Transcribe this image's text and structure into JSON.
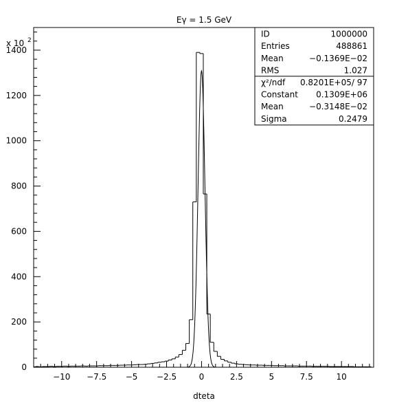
{
  "chart_data": {
    "type": "histogram",
    "title": "Eγ = 1.5 GeV",
    "xlabel": "dteta",
    "ylabel": "",
    "y_scale_label": "x 10",
    "y_scale_exponent": "2",
    "xlim": [
      -12,
      12.3
    ],
    "ylim": [
      0,
      1500
    ],
    "xticks": [
      -10,
      -7.5,
      -5,
      -2.5,
      0,
      2.5,
      5,
      7.5,
      10
    ],
    "xtick_labels": [
      "−10",
      "−7.5",
      "−5",
      "−2.5",
      "0",
      "2.5",
      "5",
      "7.5",
      "10"
    ],
    "yticks": [
      0,
      200,
      400,
      600,
      800,
      1000,
      1200,
      1400
    ],
    "ytick_labels": [
      "0",
      "200",
      "400",
      "600",
      "800",
      "1000",
      "1200",
      "1400"
    ],
    "bin_width": 0.25,
    "histogram": {
      "bin_centers": [
        -12,
        -11.75,
        -11.5,
        -11.25,
        -11,
        -10.75,
        -10.5,
        -10.25,
        -10,
        -9.75,
        -9.5,
        -9.25,
        -9,
        -8.75,
        -8.5,
        -8.25,
        -8,
        -7.75,
        -7.5,
        -7.25,
        -7,
        -6.75,
        -6.5,
        -6.25,
        -6,
        -5.75,
        -5.5,
        -5.25,
        -5,
        -4.75,
        -4.5,
        -4.25,
        -4,
        -3.75,
        -3.5,
        -3.25,
        -3,
        -2.75,
        -2.5,
        -2.25,
        -2,
        -1.75,
        -1.5,
        -1.25,
        -1,
        -0.75,
        -0.5,
        -0.25,
        0,
        0.25,
        0.5,
        0.75,
        1,
        1.25,
        1.5,
        1.75,
        2,
        2.25,
        2.5,
        2.75,
        3,
        3.25,
        3.5,
        3.75,
        4,
        4.25,
        4.5,
        4.75,
        5,
        5.25,
        5.5,
        5.75,
        6,
        6.25,
        6.5,
        6.75,
        7,
        7.25,
        7.5,
        7.75,
        8,
        8.25,
        8.5,
        8.75,
        9,
        9.25,
        9.5,
        9.75,
        10,
        10.25,
        10.5,
        10.75,
        11,
        11.25,
        11.5,
        11.75,
        12
      ],
      "counts": [
        2,
        3,
        2,
        3,
        3,
        4,
        3,
        4,
        4,
        5,
        4,
        5,
        5,
        5,
        6,
        5,
        6,
        6,
        6,
        7,
        7,
        7,
        8,
        8,
        8,
        9,
        9,
        10,
        10,
        11,
        12,
        12,
        13,
        15,
        17,
        19,
        22,
        24,
        27,
        32,
        37,
        45,
        56,
        75,
        105,
        210,
        730,
        1390,
        1385,
        765,
        235,
        110,
        70,
        48,
        35,
        28,
        22,
        18,
        15,
        13,
        12,
        11,
        10,
        10,
        9,
        9,
        8,
        8,
        8,
        7,
        7,
        7,
        6,
        6,
        6,
        6,
        5,
        5,
        5,
        5,
        4,
        4,
        4,
        4,
        4,
        3,
        3,
        3,
        3,
        3,
        3,
        3,
        2,
        2,
        2,
        2,
        2
      ]
    },
    "fit": {
      "function": "gaussian",
      "constant": 1309,
      "mean": -0.003148,
      "sigma": 0.2479
    },
    "stats_box": [
      {
        "label": "ID",
        "value": "1000000"
      },
      {
        "label": "Entries",
        "value": "488861"
      },
      {
        "label": "Mean",
        "value": "−0.1369E−02"
      },
      {
        "label": "RMS",
        "value": "1.027"
      },
      {
        "label": "χ²/ndf",
        "value": "0.8201E+05/   97"
      },
      {
        "label": "Constant",
        "value": "0.1309E+06"
      },
      {
        "label": "Mean",
        "value": "−0.3148E−02"
      },
      {
        "label": "Sigma",
        "value": "0.2479"
      }
    ],
    "grid": false,
    "legend": "top-right"
  }
}
